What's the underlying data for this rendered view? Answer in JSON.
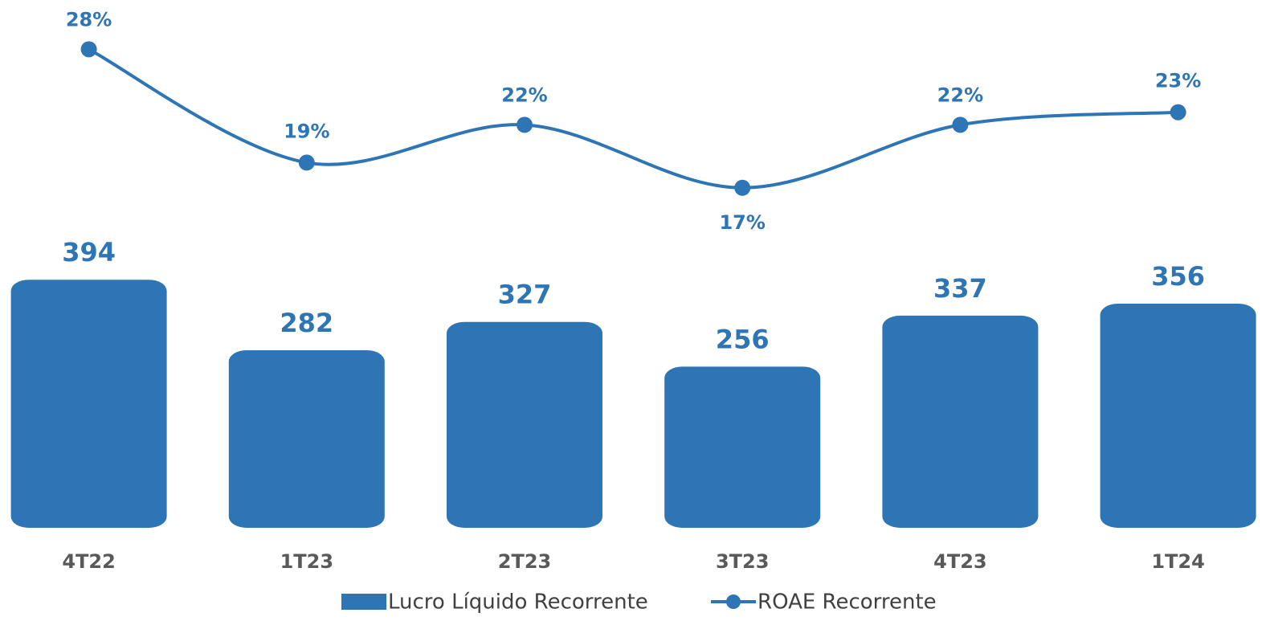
{
  "chart_data": {
    "type": "bar+line",
    "categories": [
      "4T22",
      "1T23",
      "2T23",
      "3T23",
      "4T23",
      "1T24"
    ],
    "series": [
      {
        "name": "Lucro Líquido Recorrente",
        "type": "bar",
        "color": "#2e75b6",
        "values": [
          394,
          282,
          327,
          256,
          337,
          356
        ]
      },
      {
        "name": "ROAE Recorrente",
        "type": "line",
        "axis": "y2",
        "color": "#2e75b6",
        "values": [
          28,
          19,
          22,
          17,
          22,
          23
        ],
        "value_labels": [
          "28%",
          "19%",
          "22%",
          "17%",
          "22%",
          "23%"
        ]
      }
    ],
    "ylim": [
      0,
      800
    ],
    "y2lim": [
      -10,
      30
    ],
    "legend": "bottom"
  }
}
